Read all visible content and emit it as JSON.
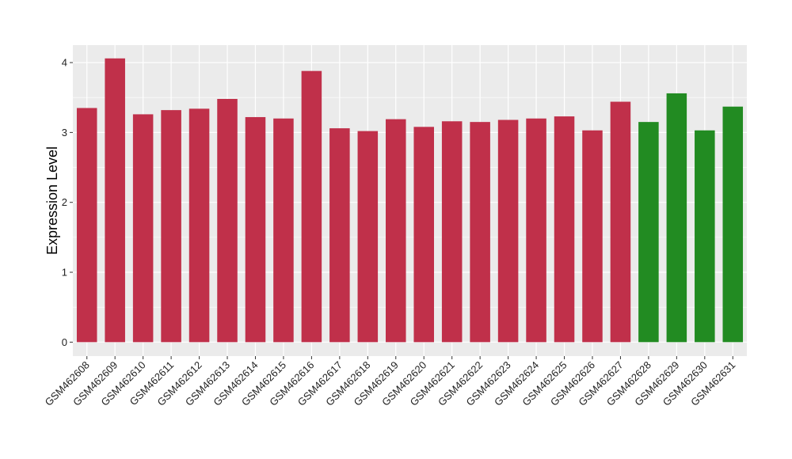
{
  "chart_data": {
    "type": "bar",
    "title": "",
    "xlabel": "",
    "ylabel": "Expression Level",
    "ylim": [
      -0.2,
      4.25
    ],
    "yticks": [
      0,
      1,
      2,
      3,
      4
    ],
    "grid": true,
    "legend": "none",
    "categories": [
      "GSM462608",
      "GSM462609",
      "GSM462610",
      "GSM462611",
      "GSM462612",
      "GSM462613",
      "GSM462614",
      "GSM462615",
      "GSM462616",
      "GSM462617",
      "GSM462618",
      "GSM462619",
      "GSM462620",
      "GSM462621",
      "GSM462622",
      "GSM462623",
      "GSM462624",
      "GSM462625",
      "GSM462626",
      "GSM462627",
      "GSM462628",
      "GSM462629",
      "GSM462630",
      "GSM462631"
    ],
    "values": [
      3.35,
      4.06,
      3.26,
      3.32,
      3.34,
      3.48,
      3.22,
      3.2,
      3.88,
      3.06,
      3.02,
      3.19,
      3.08,
      3.16,
      3.15,
      3.18,
      3.2,
      3.23,
      3.03,
      3.44,
      3.15,
      3.56,
      3.03,
      3.37
    ],
    "bar_colors": [
      "#c0304a",
      "#c0304a",
      "#c0304a",
      "#c0304a",
      "#c0304a",
      "#c0304a",
      "#c0304a",
      "#c0304a",
      "#c0304a",
      "#c0304a",
      "#c0304a",
      "#c0304a",
      "#c0304a",
      "#c0304a",
      "#c0304a",
      "#c0304a",
      "#c0304a",
      "#c0304a",
      "#c0304a",
      "#c0304a",
      "#228b22",
      "#228b22",
      "#228b22",
      "#228b22"
    ],
    "colors": {
      "panel_background": "#ebebeb",
      "gridline": "#ffffff"
    }
  }
}
